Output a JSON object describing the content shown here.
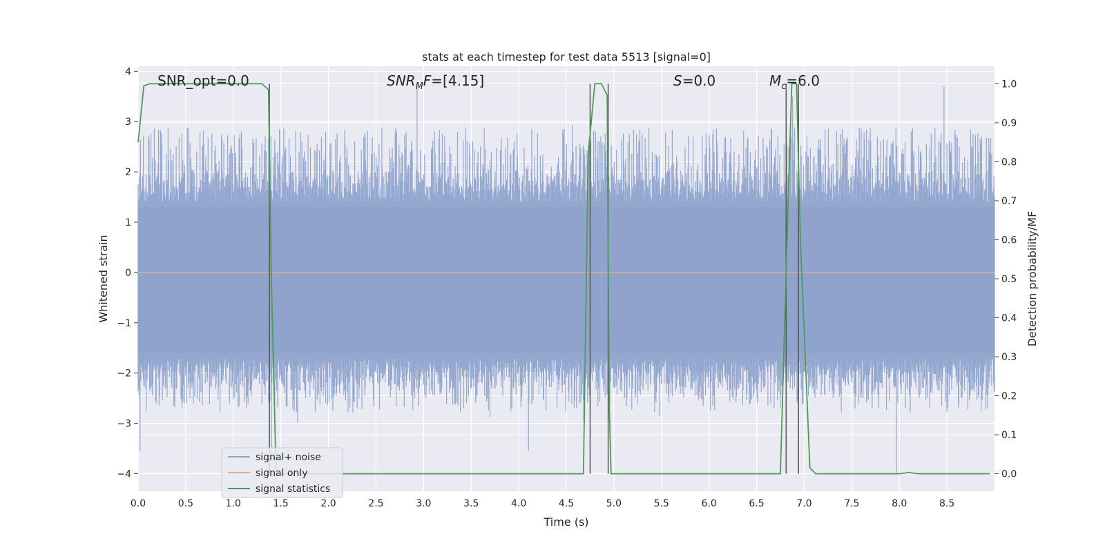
{
  "chart_data": {
    "type": "line",
    "title": "stats at each timestep for test data 5513 [signal=0]",
    "xlabel": "Time (s)",
    "ylabel": "Whitened strain",
    "y2label": "Detection probability/MF",
    "xlim": [
      0.0,
      9.0
    ],
    "ylim": [
      -4.35,
      4.1
    ],
    "y2lim": [
      -0.045,
      1.045
    ],
    "xticks": [
      0.0,
      0.5,
      1.0,
      1.5,
      2.0,
      2.5,
      3.0,
      3.5,
      4.0,
      4.5,
      5.0,
      5.5,
      6.0,
      6.5,
      7.0,
      7.5,
      8.0,
      8.5
    ],
    "yticks": [
      -4,
      -3,
      -2,
      -1,
      0,
      1,
      2,
      3,
      4
    ],
    "y2ticks": [
      0.0,
      0.1,
      0.2,
      0.3,
      0.4,
      0.5,
      0.6,
      0.7,
      0.8,
      0.9,
      1.0
    ],
    "grid": true,
    "legend_position": "lower-left",
    "annotations": [
      {
        "id": "snr-opt",
        "text": "SNR_opt=0.0",
        "x": 0.2,
        "y": 3.85
      },
      {
        "id": "snr-mf",
        "text": "SNR_MF=[4.15]",
        "x": 2.6,
        "y": 3.85
      },
      {
        "id": "s",
        "text": "S=0.0",
        "x": 5.6,
        "y": 3.85
      },
      {
        "id": "mc",
        "text": "M_c=6.0",
        "x": 6.6,
        "y": 3.85
      }
    ],
    "series": [
      {
        "name": "signal+ noise",
        "color": "#8fa3cc",
        "axis": "left",
        "kind": "noise",
        "x_range": [
          0.0,
          9.0
        ],
        "typical_band": [
          -1.7,
          1.4
        ],
        "typical_extremes": [
          -2.6,
          2.7
        ],
        "notable_peaks": [
          {
            "x": 2.93,
            "y": 3.75
          },
          {
            "x": 6.88,
            "y": 3.5
          },
          {
            "x": 8.47,
            "y": 3.7
          },
          {
            "x": 0.02,
            "y": -3.55
          },
          {
            "x": 4.1,
            "y": -3.55
          },
          {
            "x": 7.97,
            "y": -4.0
          },
          {
            "x": 1.4,
            "y": -3.7
          }
        ]
      },
      {
        "name": "signal only",
        "color": "#e8a98a",
        "axis": "left",
        "x": [
          0.0,
          9.0
        ],
        "y": [
          0.0,
          0.0
        ]
      },
      {
        "name": "signal statistics",
        "color": "#4e9a56",
        "axis": "right",
        "x": [
          0.0,
          0.06,
          0.12,
          0.2,
          0.5,
          1.0,
          1.3,
          1.37,
          1.4,
          1.45,
          1.5,
          2.0,
          3.0,
          4.0,
          4.5,
          4.68,
          4.73,
          4.8,
          4.87,
          4.93,
          4.95,
          4.97,
          5.02,
          5.5,
          6.0,
          6.5,
          6.75,
          6.82,
          6.87,
          6.92,
          6.96,
          7.06,
          7.12,
          7.5,
          8.0,
          8.1,
          8.2,
          8.5,
          8.95
        ],
        "y": [
          0.85,
          0.995,
          1.0,
          1.0,
          1.0,
          1.0,
          1.0,
          0.985,
          0.5,
          0.0,
          0.0,
          0.0,
          0.0,
          0.0,
          0.0,
          0.0,
          0.82,
          1.0,
          1.0,
          0.97,
          0.19,
          0.0,
          0.0,
          0.0,
          0.0,
          0.0,
          0.0,
          0.6,
          1.0,
          1.0,
          0.6,
          0.015,
          0.0,
          0.0,
          0.0,
          0.003,
          0.0,
          0.0,
          0.0
        ]
      }
    ],
    "threshold_lines": [
      {
        "x": 1.38,
        "y_top": 1.0,
        "y_bottom": 0.0
      },
      {
        "x": 4.75,
        "y_top": 1.0,
        "y_bottom": 0.0
      },
      {
        "x": 4.94,
        "y_top": 1.0,
        "y_bottom": 0.0
      },
      {
        "x": 6.81,
        "y_top": 1.0,
        "y_bottom": 0.0
      },
      {
        "x": 6.94,
        "y_top": 1.0,
        "y_bottom": 0.0
      }
    ],
    "colors": {
      "plot_background": "#eaeaf2",
      "grid": "#ffffff",
      "threshold": "#555555"
    }
  }
}
